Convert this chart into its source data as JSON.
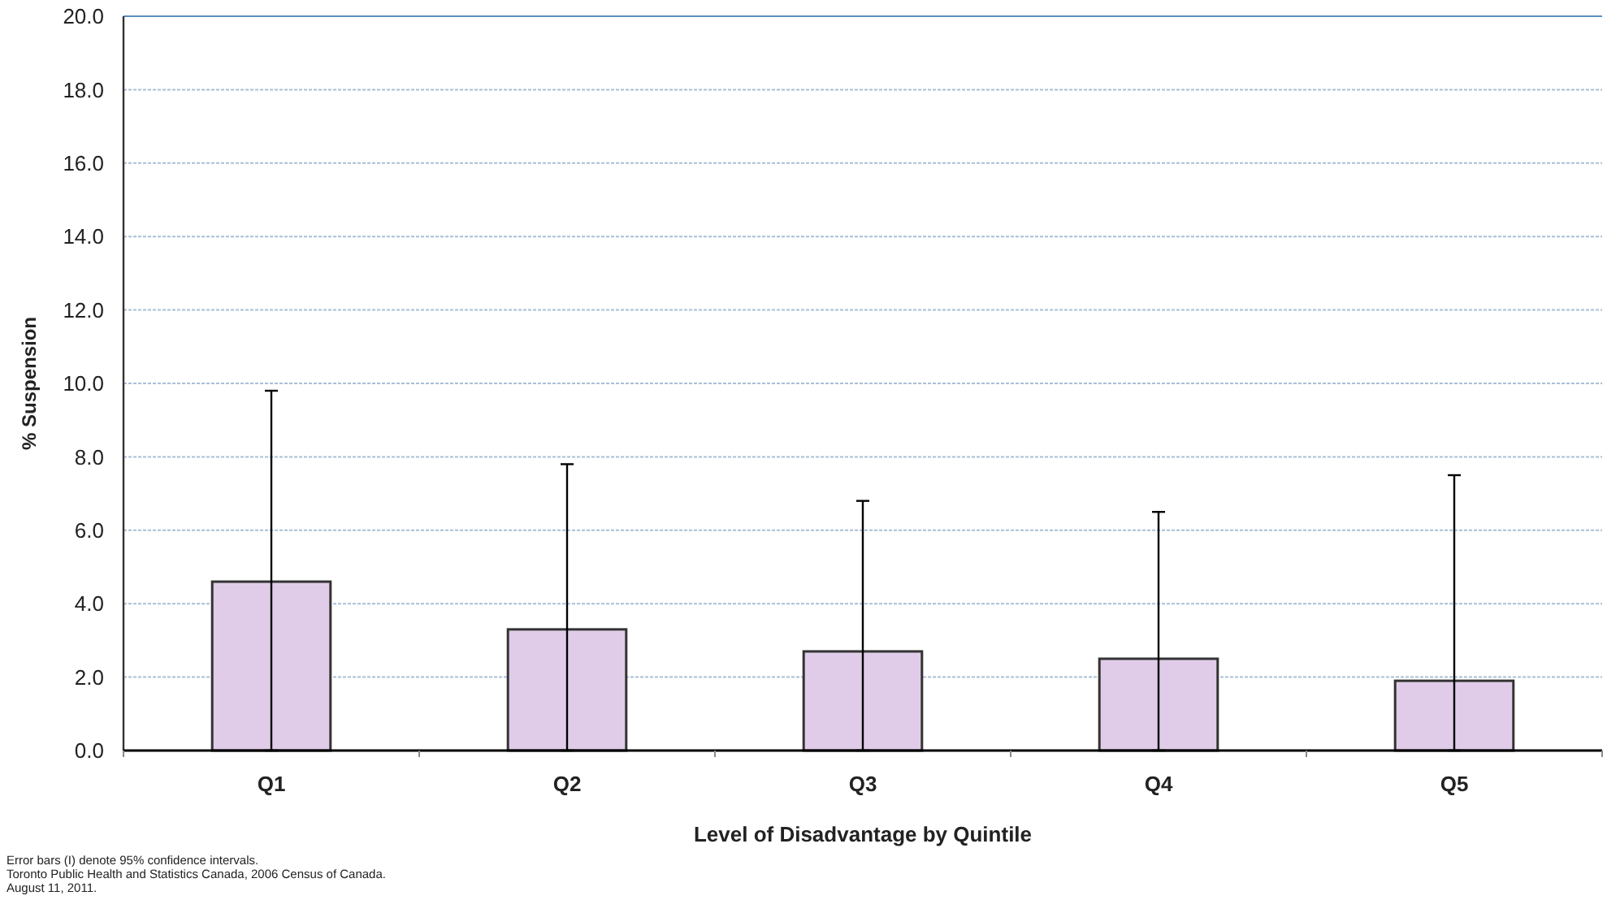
{
  "chart_data": {
    "type": "bar",
    "ylabel": "% Suspension",
    "xlabel": "Level of Disadvantage by Quintile",
    "categories": [
      "Q1",
      "Q2",
      "Q3",
      "Q4",
      "Q5"
    ],
    "values": [
      4.6,
      3.3,
      2.7,
      2.5,
      1.9
    ],
    "errors": [
      [
        0,
        9.8
      ],
      [
        0,
        7.8
      ],
      [
        0,
        6.8
      ],
      [
        0,
        6.5
      ],
      [
        0,
        7.5
      ]
    ],
    "color": "#e0cce8",
    "ylim": [
      0,
      20
    ],
    "yticks": [
      {
        "value": 0,
        "label": "0.0"
      },
      {
        "value": 2,
        "label": "2.0"
      },
      {
        "value": 4,
        "label": "4.0"
      },
      {
        "value": 6,
        "label": "6.0"
      },
      {
        "value": 8,
        "label": "8.0"
      },
      {
        "value": 10,
        "label": "10.0"
      },
      {
        "value": 12,
        "label": "12.0"
      },
      {
        "value": 14,
        "label": "14.0"
      },
      {
        "value": 16,
        "label": "16.0"
      },
      {
        "value": 18,
        "label": "18.0"
      },
      {
        "value": 20,
        "label": "20.0"
      }
    ],
    "grid": "y",
    "annotations": [
      "Error bars (I) denote 95% confidence intervals.",
      "Toronto Public Health and Statistics Canada, 2006 Census of Canada.",
      "August 11, 2011."
    ]
  }
}
